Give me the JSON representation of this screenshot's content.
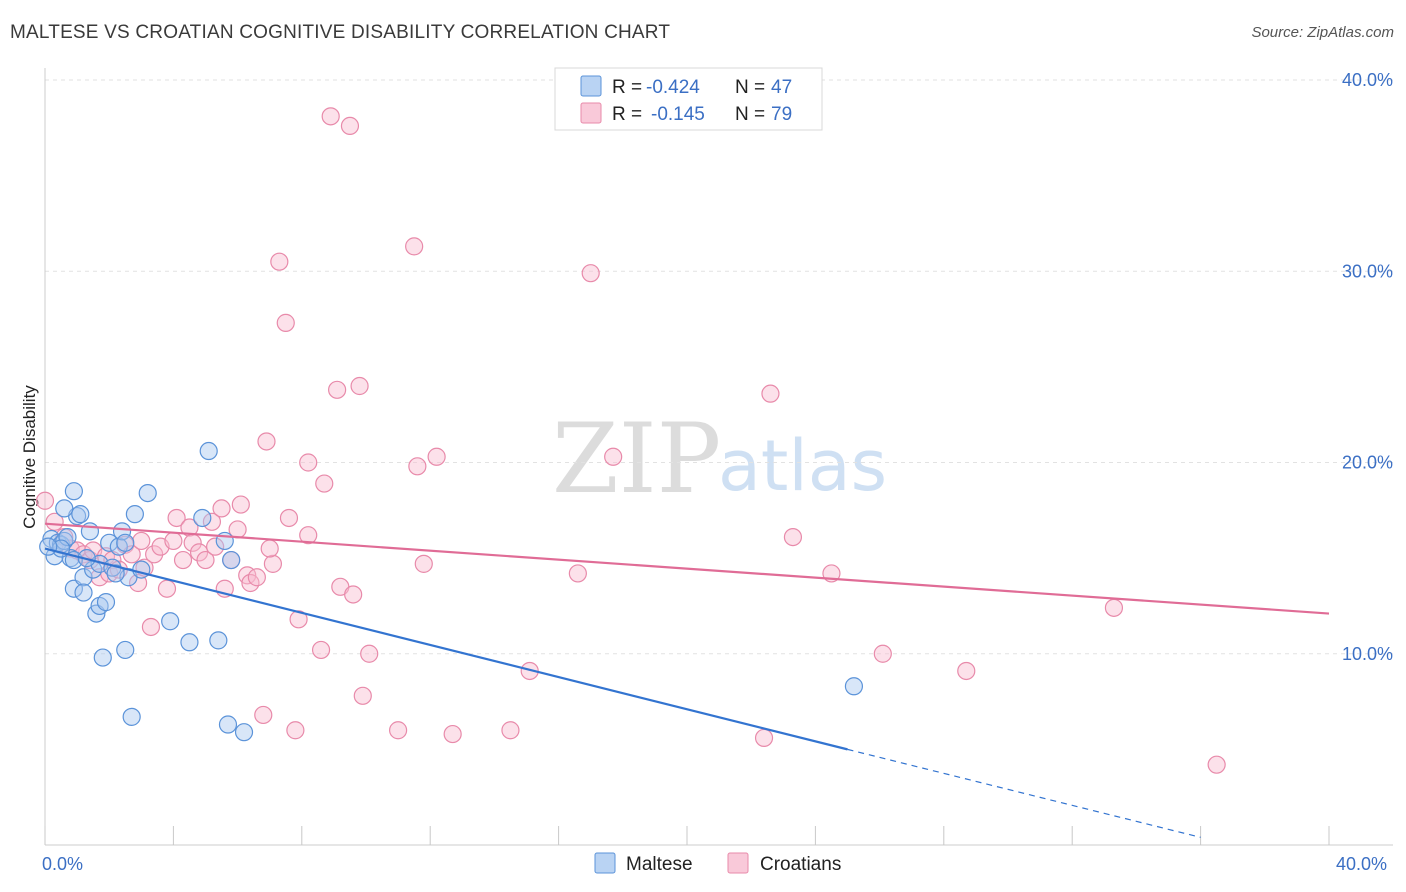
{
  "title": "MALTESE VS CROATIAN COGNITIVE DISABILITY CORRELATION CHART",
  "source": "Source: ZipAtlas.com",
  "watermark": {
    "zip": "ZIP",
    "atlas": "atlas"
  },
  "colors": {
    "maltese_fill": "#a8c8f0",
    "maltese_stroke": "#5b93d9",
    "maltese_line": "#3374d0",
    "croatians_fill": "#f8bcd0",
    "croatians_stroke": "#e88aaa",
    "croatians_line": "#e06c96",
    "tick_label": "#3b6fc4",
    "grid": "#e2e2e2"
  },
  "legend_top": {
    "rows": [
      {
        "r_label": "R =",
        "r_value": "-0.424",
        "n_label": "N =",
        "n_value": "47"
      },
      {
        "r_label": "R =",
        "r_value": "-0.145",
        "n_label": "N =",
        "n_value": "79"
      }
    ]
  },
  "legend_bottom": [
    "Maltese",
    "Croatians"
  ],
  "chart_data": {
    "type": "scatter",
    "xlabel": "",
    "ylabel": "Cognitive Disability",
    "xlim": [
      0,
      40
    ],
    "ylim": [
      0,
      40
    ],
    "x_tick_labels": [
      "0.0%",
      "40.0%"
    ],
    "y_ticks": [
      10,
      20,
      30,
      40
    ],
    "y_tick_labels": [
      "10.0%",
      "20.0%",
      "30.0%",
      "40.0%"
    ],
    "grid": true,
    "legend_position": "top-center",
    "series": [
      {
        "name": "Maltese",
        "r": -0.424,
        "n": 47,
        "trend": {
          "x0": 0,
          "y0": 15.5,
          "x1": 25,
          "y1": 5.0,
          "dashed_to_x": 36,
          "dashed_to_y": 0.4
        },
        "points": [
          [
            0.2,
            16.0
          ],
          [
            0.3,
            15.1
          ],
          [
            0.4,
            15.8
          ],
          [
            0.5,
            15.7
          ],
          [
            0.6,
            15.9
          ],
          [
            0.7,
            16.1
          ],
          [
            0.8,
            15.0
          ],
          [
            0.9,
            13.4
          ],
          [
            0.9,
            14.9
          ],
          [
            0.9,
            18.5
          ],
          [
            1.0,
            17.2
          ],
          [
            1.1,
            17.3
          ],
          [
            1.2,
            14.0
          ],
          [
            1.2,
            13.2
          ],
          [
            1.4,
            16.4
          ],
          [
            1.5,
            14.4
          ],
          [
            1.6,
            12.1
          ],
          [
            1.7,
            12.5
          ],
          [
            1.7,
            14.7
          ],
          [
            1.8,
            9.8
          ],
          [
            1.9,
            12.7
          ],
          [
            2.0,
            15.8
          ],
          [
            2.1,
            14.5
          ],
          [
            2.3,
            15.6
          ],
          [
            2.4,
            16.4
          ],
          [
            2.5,
            15.8
          ],
          [
            2.5,
            10.2
          ],
          [
            2.6,
            14.0
          ],
          [
            2.7,
            6.7
          ],
          [
            2.8,
            17.3
          ],
          [
            3.0,
            14.4
          ],
          [
            3.2,
            18.4
          ],
          [
            3.9,
            11.7
          ],
          [
            4.5,
            10.6
          ],
          [
            4.9,
            17.1
          ],
          [
            5.1,
            20.6
          ],
          [
            5.4,
            10.7
          ],
          [
            5.6,
            15.9
          ],
          [
            5.7,
            6.3
          ],
          [
            5.8,
            14.9
          ],
          [
            6.2,
            5.9
          ],
          [
            0.5,
            15.5
          ],
          [
            1.3,
            15.0
          ],
          [
            2.2,
            14.2
          ],
          [
            0.1,
            15.6
          ],
          [
            25.2,
            8.3
          ],
          [
            0.6,
            17.6
          ]
        ]
      },
      {
        "name": "Croatians",
        "r": -0.145,
        "n": 79,
        "trend": {
          "x0": 0,
          "y0": 16.8,
          "x1": 40,
          "y1": 12.1
        },
        "points": [
          [
            0.0,
            18.0
          ],
          [
            0.3,
            16.9
          ],
          [
            0.6,
            16.1
          ],
          [
            0.8,
            15.5
          ],
          [
            1.0,
            15.4
          ],
          [
            1.2,
            15.2
          ],
          [
            1.4,
            14.9
          ],
          [
            1.5,
            15.4
          ],
          [
            1.7,
            14.0
          ],
          [
            1.9,
            15.1
          ],
          [
            2.0,
            14.2
          ],
          [
            2.1,
            14.9
          ],
          [
            2.3,
            14.4
          ],
          [
            2.5,
            15.7
          ],
          [
            2.7,
            15.2
          ],
          [
            2.9,
            13.7
          ],
          [
            3.1,
            14.5
          ],
          [
            3.3,
            11.4
          ],
          [
            3.4,
            15.2
          ],
          [
            3.6,
            15.6
          ],
          [
            3.8,
            13.4
          ],
          [
            4.0,
            15.9
          ],
          [
            4.1,
            17.1
          ],
          [
            4.3,
            14.9
          ],
          [
            4.5,
            16.6
          ],
          [
            4.6,
            15.8
          ],
          [
            4.8,
            15.3
          ],
          [
            5.0,
            14.9
          ],
          [
            5.2,
            16.9
          ],
          [
            5.3,
            15.6
          ],
          [
            5.5,
            17.6
          ],
          [
            5.6,
            13.4
          ],
          [
            5.8,
            14.9
          ],
          [
            6.0,
            16.5
          ],
          [
            6.1,
            17.8
          ],
          [
            6.3,
            14.1
          ],
          [
            6.4,
            13.7
          ],
          [
            6.6,
            14.0
          ],
          [
            6.8,
            6.8
          ],
          [
            6.9,
            21.1
          ],
          [
            7.1,
            14.7
          ],
          [
            7.3,
            30.5
          ],
          [
            7.5,
            27.3
          ],
          [
            7.6,
            17.1
          ],
          [
            7.8,
            6.0
          ],
          [
            7.9,
            11.8
          ],
          [
            8.2,
            16.2
          ],
          [
            8.2,
            20.0
          ],
          [
            8.6,
            10.2
          ],
          [
            8.7,
            18.9
          ],
          [
            8.9,
            38.1
          ],
          [
            9.1,
            23.8
          ],
          [
            9.2,
            13.5
          ],
          [
            9.5,
            37.6
          ],
          [
            9.6,
            13.1
          ],
          [
            9.8,
            24.0
          ],
          [
            9.9,
            7.8
          ],
          [
            10.1,
            10.0
          ],
          [
            11.0,
            6.0
          ],
          [
            11.5,
            31.3
          ],
          [
            11.6,
            19.8
          ],
          [
            11.8,
            14.7
          ],
          [
            12.2,
            20.3
          ],
          [
            12.7,
            5.8
          ],
          [
            14.5,
            6.0
          ],
          [
            15.1,
            9.1
          ],
          [
            16.6,
            14.2
          ],
          [
            17.0,
            29.9
          ],
          [
            17.7,
            20.3
          ],
          [
            22.4,
            5.6
          ],
          [
            22.6,
            23.6
          ],
          [
            23.3,
            16.1
          ],
          [
            24.5,
            14.2
          ],
          [
            26.1,
            10.0
          ],
          [
            28.7,
            9.1
          ],
          [
            33.3,
            12.4
          ],
          [
            36.5,
            4.2
          ],
          [
            7.0,
            15.5
          ],
          [
            3.0,
            15.9
          ]
        ]
      }
    ]
  }
}
